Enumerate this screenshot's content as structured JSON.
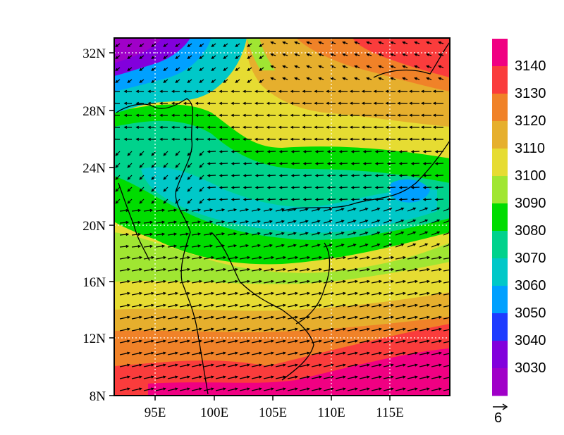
{
  "map": {
    "lat_ticks": [
      "32N",
      "28N",
      "24N",
      "20N",
      "16N",
      "12N",
      "8N"
    ],
    "lon_ticks": [
      "95E",
      "100E",
      "105E",
      "110E",
      "115E"
    ],
    "lon_range": [
      91.5,
      119.5
    ],
    "lat_range": [
      8,
      33
    ]
  },
  "colorbar": {
    "levels": [
      {
        "color": "#a000c8",
        "label": "3030"
      },
      {
        "color": "#8200dc",
        "label": "3040"
      },
      {
        "color": "#1e3cff",
        "label": "3050"
      },
      {
        "color": "#00a0ff",
        "label": "3060"
      },
      {
        "color": "#00c8c8",
        "label": "3070"
      },
      {
        "color": "#00d28c",
        "label": "3080"
      },
      {
        "color": "#00dc00",
        "label": "3090"
      },
      {
        "color": "#a0e632",
        "label": "3100"
      },
      {
        "color": "#e6dc32",
        "label": "3110"
      },
      {
        "color": "#e6af2d",
        "label": "3120"
      },
      {
        "color": "#f08228",
        "label": "3130"
      },
      {
        "color": "#fa3c3c",
        "label": "3140"
      },
      {
        "color": "#f00082",
        "label": ""
      }
    ]
  },
  "vector_reference": {
    "label": "6"
  }
}
